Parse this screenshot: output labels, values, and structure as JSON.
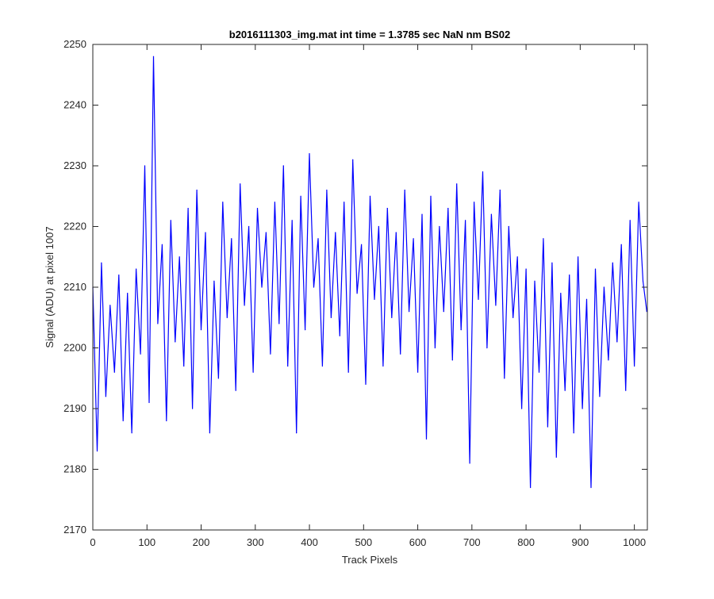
{
  "chart_data": {
    "type": "line",
    "title": "b2016111303_img.mat int time = 1.3785 sec  NaN nm BS02",
    "xlabel": "Track Pixels",
    "ylabel": "Signal (ADU) at pixel 1007",
    "xlim": [
      0,
      1024
    ],
    "ylim": [
      2170,
      2250
    ],
    "xticks": [
      0,
      100,
      200,
      300,
      400,
      500,
      600,
      700,
      800,
      900,
      1000
    ],
    "yticks": [
      2170,
      2180,
      2190,
      2200,
      2210,
      2220,
      2230,
      2240,
      2250
    ],
    "grid": false,
    "series": [
      {
        "color": "#0000ff",
        "x": [
          0,
          8,
          16,
          24,
          32,
          40,
          48,
          56,
          64,
          72,
          80,
          88,
          96,
          104,
          112,
          120,
          128,
          136,
          144,
          152,
          160,
          168,
          176,
          184,
          192,
          200,
          208,
          216,
          224,
          232,
          240,
          248,
          256,
          264,
          272,
          280,
          288,
          296,
          304,
          312,
          320,
          328,
          336,
          344,
          352,
          360,
          368,
          376,
          384,
          392,
          400,
          408,
          416,
          424,
          432,
          440,
          448,
          456,
          464,
          472,
          480,
          488,
          496,
          504,
          512,
          520,
          528,
          536,
          544,
          552,
          560,
          568,
          576,
          584,
          592,
          600,
          608,
          616,
          624,
          632,
          640,
          648,
          656,
          664,
          672,
          680,
          688,
          696,
          704,
          712,
          720,
          728,
          736,
          744,
          752,
          760,
          768,
          776,
          784,
          792,
          800,
          808,
          816,
          824,
          832,
          840,
          848,
          856,
          864,
          872,
          880,
          888,
          896,
          904,
          912,
          920,
          928,
          936,
          944,
          952,
          960,
          968,
          976,
          984,
          992,
          1000,
          1008,
          1016,
          1023
        ],
        "y": [
          2210,
          2183,
          2214,
          2192,
          2207,
          2196,
          2212,
          2188,
          2209,
          2186,
          2213,
          2199,
          2230,
          2191,
          2248,
          2204,
          2217,
          2188,
          2221,
          2201,
          2215,
          2197,
          2223,
          2190,
          2226,
          2203,
          2219,
          2186,
          2211,
          2195,
          2224,
          2205,
          2218,
          2193,
          2227,
          2207,
          2220,
          2196,
          2223,
          2210,
          2219,
          2199,
          2224,
          2204,
          2230,
          2197,
          2221,
          2186,
          2225,
          2203,
          2232,
          2210,
          2218,
          2197,
          2226,
          2205,
          2219,
          2202,
          2224,
          2196,
          2231,
          2209,
          2217,
          2194,
          2225,
          2208,
          2220,
          2197,
          2223,
          2205,
          2219,
          2199,
          2226,
          2206,
          2218,
          2196,
          2222,
          2185,
          2225,
          2200,
          2220,
          2206,
          2223,
          2198,
          2227,
          2203,
          2221,
          2181,
          2224,
          2208,
          2229,
          2200,
          2222,
          2207,
          2226,
          2195,
          2220,
          2205,
          2215,
          2190,
          2213,
          2177,
          2211,
          2196,
          2218,
          2187,
          2214,
          2182,
          2209,
          2193,
          2212,
          2186,
          2215,
          2190,
          2208,
          2177,
          2213,
          2192,
          2210,
          2198,
          2214,
          2201,
          2217,
          2193,
          2221,
          2197,
          2224,
          2211,
          2206
        ]
      }
    ]
  }
}
